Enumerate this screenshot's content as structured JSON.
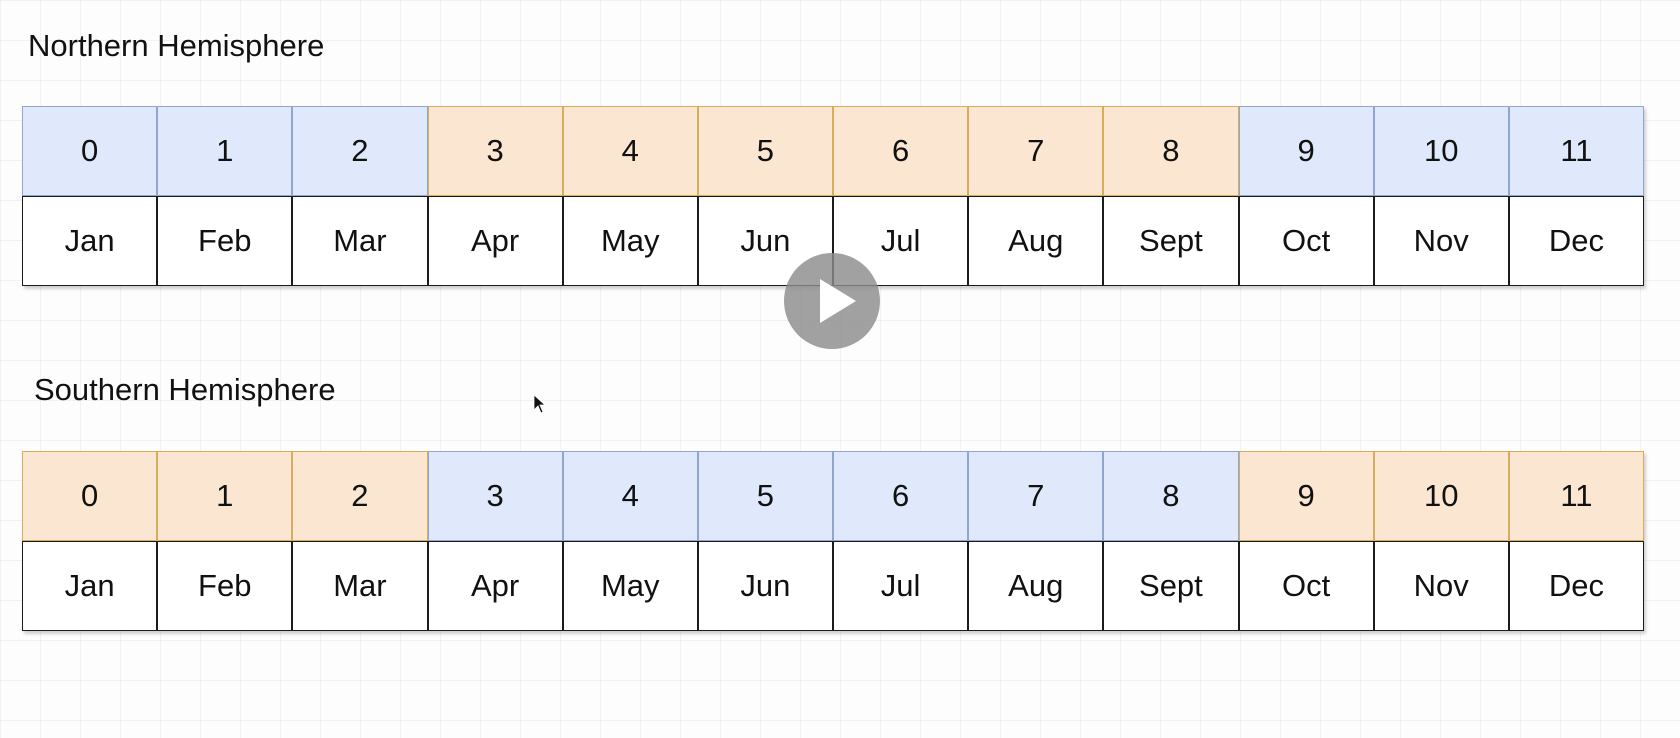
{
  "colors": {
    "cold_fill": "#dfe9fb",
    "cold_border": "#90a6cc",
    "warm_fill": "#fbe6d1",
    "warm_border": "#d6ad5e",
    "month_border": "#1b1b1b"
  },
  "icons": {
    "play": "play-icon",
    "cursor": "mouse-cursor-icon"
  },
  "sections": [
    {
      "id": "north",
      "title": "Northern Hemisphere",
      "cells": [
        {
          "index": "0",
          "month": "Jan",
          "season": "cold"
        },
        {
          "index": "1",
          "month": "Feb",
          "season": "cold"
        },
        {
          "index": "2",
          "month": "Mar",
          "season": "cold"
        },
        {
          "index": "3",
          "month": "Apr",
          "season": "warm"
        },
        {
          "index": "4",
          "month": "May",
          "season": "warm"
        },
        {
          "index": "5",
          "month": "Jun",
          "season": "warm"
        },
        {
          "index": "6",
          "month": "Jul",
          "season": "warm"
        },
        {
          "index": "7",
          "month": "Aug",
          "season": "warm"
        },
        {
          "index": "8",
          "month": "Sept",
          "season": "warm"
        },
        {
          "index": "9",
          "month": "Oct",
          "season": "cold"
        },
        {
          "index": "10",
          "month": "Nov",
          "season": "cold"
        },
        {
          "index": "11",
          "month": "Dec",
          "season": "cold"
        }
      ]
    },
    {
      "id": "south",
      "title": "Southern Hemisphere",
      "cells": [
        {
          "index": "0",
          "month": "Jan",
          "season": "warm"
        },
        {
          "index": "1",
          "month": "Feb",
          "season": "warm"
        },
        {
          "index": "2",
          "month": "Mar",
          "season": "warm"
        },
        {
          "index": "3",
          "month": "Apr",
          "season": "cold"
        },
        {
          "index": "4",
          "month": "May",
          "season": "cold"
        },
        {
          "index": "5",
          "month": "Jun",
          "season": "cold"
        },
        {
          "index": "6",
          "month": "Jul",
          "season": "cold"
        },
        {
          "index": "7",
          "month": "Aug",
          "season": "cold"
        },
        {
          "index": "8",
          "month": "Sept",
          "season": "cold"
        },
        {
          "index": "9",
          "month": "Oct",
          "season": "warm"
        },
        {
          "index": "10",
          "month": "Nov",
          "season": "warm"
        },
        {
          "index": "11",
          "month": "Dec",
          "season": "warm"
        }
      ]
    }
  ]
}
